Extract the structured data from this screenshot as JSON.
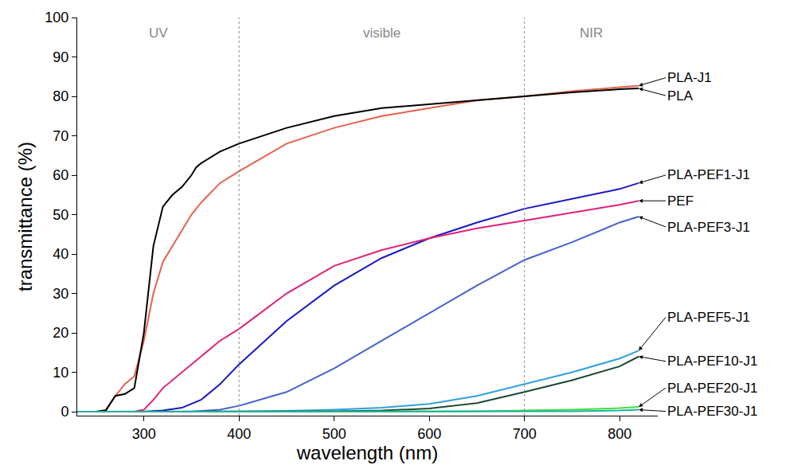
{
  "chart_data": {
    "type": "line",
    "x_label": "wavelength (nm)",
    "y_label": "transmittance (%)",
    "xlim": [
      230,
      840
    ],
    "xticks": [
      300,
      400,
      500,
      600,
      700,
      800
    ],
    "ylim": [
      -1,
      100
    ],
    "yticks": [
      0,
      10,
      20,
      30,
      40,
      50,
      60,
      70,
      80,
      90,
      100
    ],
    "grid": false,
    "regions": [
      {
        "label": "UV",
        "from": 230,
        "to": 400
      },
      {
        "label": "visible",
        "from": 400,
        "to": 700
      },
      {
        "label": "NIR",
        "from": 700,
        "to": 840
      }
    ],
    "series": [
      {
        "name": "PLA-J1",
        "color": "#e8604c",
        "x": [
          230,
          250,
          260,
          270,
          280,
          290,
          300,
          310,
          320,
          330,
          340,
          350,
          360,
          380,
          400,
          450,
          500,
          550,
          600,
          650,
          700,
          750,
          800,
          820
        ],
        "values": [
          0,
          0,
          0.5,
          4,
          7,
          9,
          18,
          30,
          38,
          42,
          46,
          50,
          53,
          58,
          61,
          68,
          72,
          75,
          77,
          79,
          80,
          81.3,
          82.3,
          82.7
        ]
      },
      {
        "name": "PLA",
        "color": "#000000",
        "x": [
          230,
          250,
          260,
          270,
          280,
          290,
          300,
          310,
          320,
          330,
          340,
          350,
          355,
          360,
          380,
          400,
          450,
          500,
          550,
          600,
          650,
          700,
          750,
          800,
          820
        ],
        "values": [
          0,
          0,
          0.3,
          4,
          4.5,
          6,
          20,
          42,
          52,
          55,
          57,
          60,
          62,
          63,
          66,
          68,
          72,
          75,
          77,
          78,
          79,
          80,
          81,
          81.8,
          82
        ]
      },
      {
        "name": "PLA-PEF1-J1",
        "color": "#1818c8",
        "x": [
          230,
          300,
          320,
          340,
          360,
          380,
          400,
          450,
          500,
          550,
          600,
          650,
          700,
          750,
          800,
          820
        ],
        "values": [
          0,
          0,
          0.3,
          1,
          3,
          7,
          12,
          23,
          32,
          39,
          44,
          48,
          51.5,
          54,
          56.5,
          58
        ]
      },
      {
        "name": "PEF",
        "color": "#e0207a",
        "x": [
          230,
          290,
          300,
          310,
          320,
          340,
          360,
          380,
          400,
          450,
          500,
          550,
          600,
          650,
          700,
          750,
          800,
          820
        ],
        "values": [
          0,
          0,
          0.5,
          3,
          6,
          10,
          14,
          18,
          21,
          30,
          37,
          41,
          44,
          46.5,
          48.5,
          50.5,
          52.5,
          53.5
        ]
      },
      {
        "name": "PLA-PEF3-J1",
        "color": "#4262d2",
        "x": [
          230,
          350,
          380,
          400,
          450,
          500,
          550,
          600,
          650,
          700,
          750,
          800,
          820
        ],
        "values": [
          0,
          0,
          0.5,
          1.5,
          5,
          11,
          18,
          25,
          32,
          38.5,
          43,
          48,
          49.5
        ]
      },
      {
        "name": "PLA-PEF5-J1",
        "color": "#30a0e0",
        "x": [
          230,
          400,
          450,
          500,
          550,
          600,
          650,
          700,
          750,
          800,
          820
        ],
        "values": [
          0,
          0,
          0.2,
          0.5,
          1,
          2,
          4,
          7,
          10,
          13.5,
          15.5
        ]
      },
      {
        "name": "PLA-PEF10-J1",
        "color": "#1a4a30",
        "x": [
          230,
          500,
          550,
          600,
          650,
          700,
          750,
          800,
          820
        ],
        "values": [
          0,
          0.1,
          0.3,
          0.8,
          2.2,
          5,
          8,
          11.5,
          14
        ]
      },
      {
        "name": "PLA-PEF20-J1",
        "color": "#40e040",
        "x": [
          230,
          600,
          650,
          700,
          750,
          800,
          820
        ],
        "values": [
          0,
          0,
          0.1,
          0.3,
          0.5,
          0.9,
          1.2
        ]
      },
      {
        "name": "PLA-PEF30-J1",
        "color": "#20b0a0",
        "x": [
          230,
          700,
          750,
          800,
          820
        ],
        "values": [
          0,
          0,
          0.1,
          0.3,
          0.5
        ]
      }
    ]
  }
}
